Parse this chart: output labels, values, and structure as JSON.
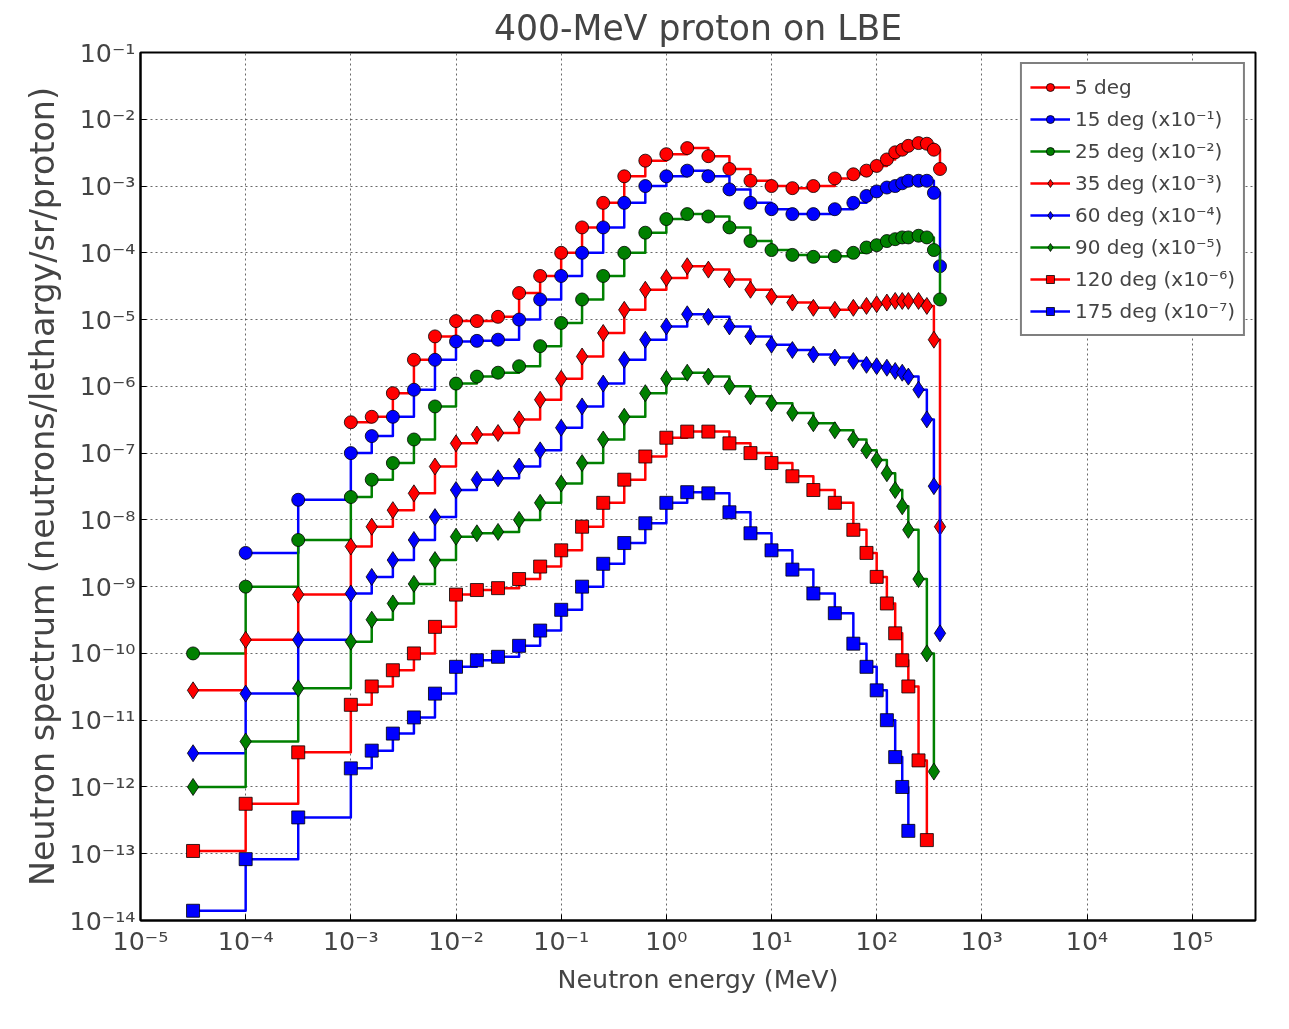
{
  "chart_data": {
    "type": "step",
    "title": "400-MeV proton on LBE",
    "xlabel": "Neutron energy (MeV)",
    "ylabel": "Neutron spectrum (neutrons/lethargy/sr/proton)",
    "log": "xy",
    "grid": true,
    "legend": "top right",
    "line_style": "solid",
    "xlim": [
      1e-05,
      400000
    ],
    "ylim": [
      1e-14,
      0.1
    ],
    "xticks": [
      {
        "value": 1e-05,
        "label": "10⁻⁵"
      },
      {
        "value": 0.0001,
        "label": "10⁻⁴"
      },
      {
        "value": 0.001,
        "label": "10⁻³"
      },
      {
        "value": 0.01,
        "label": "10⁻²"
      },
      {
        "value": 0.1,
        "label": "10⁻¹"
      },
      {
        "value": 1,
        "label": "10⁰"
      },
      {
        "value": 10,
        "label": "10¹"
      },
      {
        "value": 100,
        "label": "10²"
      },
      {
        "value": 1000,
        "label": "10³"
      },
      {
        "value": 10000,
        "label": "10⁴"
      },
      {
        "value": 100000,
        "label": "10⁵"
      }
    ],
    "yticks": [
      {
        "value": 1e-14,
        "label": "10⁻¹⁴"
      },
      {
        "value": 1e-13,
        "label": "10⁻¹³"
      },
      {
        "value": 1e-12,
        "label": "10⁻¹²"
      },
      {
        "value": 1e-11,
        "label": "10⁻¹¹"
      },
      {
        "value": 1e-10,
        "label": "10⁻¹⁰"
      },
      {
        "value": 1e-09,
        "label": "10⁻⁹"
      },
      {
        "value": 1e-08,
        "label": "10⁻⁸"
      },
      {
        "value": 1e-07,
        "label": "10⁻⁷"
      },
      {
        "value": 1e-06,
        "label": "10⁻⁶"
      },
      {
        "value": 1e-05,
        "label": "10⁻⁵"
      },
      {
        "value": 0.0001,
        "label": "10⁻⁴"
      },
      {
        "value": 0.001,
        "label": "10⁻³"
      },
      {
        "value": 0.01,
        "label": "10⁻²"
      },
      {
        "value": 0.1,
        "label": "10⁻¹"
      }
    ],
    "x": [
      3.16e-05,
      0.0001,
      0.000316,
      0.001,
      0.00158,
      0.00251,
      0.00398,
      0.00631,
      0.01,
      0.0158,
      0.0251,
      0.0398,
      0.0631,
      0.1,
      0.158,
      0.251,
      0.398,
      0.631,
      1,
      1.58,
      2.51,
      3.98,
      6.31,
      10,
      15.8,
      25,
      40,
      60,
      80,
      100,
      125,
      150,
      175,
      200,
      250,
      300,
      350,
      400
    ],
    "series": [
      {
        "name": "5 deg",
        "color": "#ff0000",
        "marker": "circle",
        "values": [
          null,
          null,
          null,
          2.9e-07,
          3.5e-07,
          7.9e-07,
          2.5e-06,
          5.6e-06,
          9.5e-06,
          9.5e-06,
          1.1e-05,
          2.5e-05,
          4.5e-05,
          0.0001,
          0.00024,
          0.00056,
          0.0014,
          0.0024,
          0.003,
          0.0037,
          0.0028,
          0.0018,
          0.0012,
          0.001,
          0.00093,
          0.001,
          0.0013,
          0.0015,
          0.0017,
          0.002,
          0.0025,
          0.0032,
          0.0035,
          0.004,
          0.0044,
          0.0043,
          0.0035,
          0.0018
        ]
      },
      {
        "name": "15 deg (x10⁻¹)",
        "color": "#0000ff",
        "marker": "circle",
        "values": [
          null,
          3.2e-09,
          2e-08,
          1e-07,
          1.8e-07,
          3.5e-07,
          8.9e-07,
          2.5e-06,
          4.7e-06,
          4.8e-06,
          5e-06,
          1e-05,
          2e-05,
          4.5e-05,
          0.0001,
          0.00024,
          0.00056,
          0.001,
          0.0014,
          0.0017,
          0.0014,
          0.00089,
          0.00056,
          0.00045,
          0.00038,
          0.00038,
          0.00045,
          0.00056,
          0.00071,
          0.00083,
          0.00095,
          0.001,
          0.0011,
          0.0012,
          0.0012,
          0.0012,
          0.00079,
          6.3e-05
        ]
      },
      {
        "name": "25 deg (x10⁻²)",
        "color": "#008000",
        "marker": "circle",
        "values": [
          1e-10,
          1e-09,
          5e-09,
          2.2e-08,
          4e-08,
          7.1e-08,
          1.6e-07,
          5e-07,
          1.1e-06,
          1.4e-06,
          1.6e-06,
          2e-06,
          4e-06,
          8.9e-06,
          2e-05,
          4.5e-05,
          0.0001,
          0.0002,
          0.00032,
          0.00038,
          0.00035,
          0.00024,
          0.00015,
          0.00011,
          9.3e-05,
          8.7e-05,
          8.9e-05,
          0.0001,
          0.00012,
          0.00013,
          0.00015,
          0.00016,
          0.00017,
          0.00017,
          0.00018,
          0.00017,
          0.00011,
          2e-05
        ]
      },
      {
        "name": "35 deg (x10⁻³)",
        "color": "#ff0000",
        "marker": "diamond",
        "values": [
          2.8e-11,
          1.6e-10,
          7.6e-10,
          4e-09,
          7.9e-09,
          1.4e-08,
          2.5e-08,
          6.3e-08,
          1.4e-07,
          1.9e-07,
          2e-07,
          3.2e-07,
          6.3e-07,
          1.3e-06,
          2.8e-06,
          6.3e-06,
          1.4e-05,
          2.8e-05,
          4.2e-05,
          6.3e-05,
          5.6e-05,
          4e-05,
          2.8e-05,
          2.2e-05,
          1.8e-05,
          1.5e-05,
          1.4e-05,
          1.5e-05,
          1.6e-05,
          1.7e-05,
          1.8e-05,
          1.9e-05,
          1.9e-05,
          1.9e-05,
          1.9e-05,
          1.6e-05,
          5e-06,
          7.9e-09
        ]
      },
      {
        "name": "60 deg (x10⁻⁴)",
        "color": "#0000ff",
        "marker": "diamond",
        "values": [
          3.2e-12,
          2.5e-11,
          1.6e-10,
          7.9e-10,
          1.4e-09,
          2.5e-09,
          5e-09,
          1.1e-08,
          2.8e-08,
          4e-08,
          4.2e-08,
          6.3e-08,
          1.1e-07,
          2.4e-07,
          5e-07,
          1.1e-06,
          2.5e-06,
          5e-06,
          7.9e-06,
          1.2e-05,
          1.1e-05,
          7.9e-06,
          5.6e-06,
          4.2e-06,
          3.5e-06,
          3e-06,
          2.7e-06,
          2.4e-06,
          2.1e-06,
          2e-06,
          1.9e-06,
          1.7e-06,
          1.6e-06,
          1.4e-06,
          8.9e-07,
          3.2e-07,
          3.2e-08,
          2e-10
        ]
      },
      {
        "name": "90 deg (x10⁻⁵)",
        "color": "#008000",
        "marker": "diamond",
        "values": [
          1e-12,
          4.8e-12,
          3e-11,
          1.5e-10,
          3.2e-10,
          5.6e-10,
          1.1e-09,
          2.5e-09,
          5.6e-09,
          6.3e-09,
          6.6e-09,
          1e-08,
          1.8e-08,
          3.5e-08,
          7.1e-08,
          1.6e-07,
          3.5e-07,
          7.9e-07,
          1.3e-06,
          1.6e-06,
          1.4e-06,
          1e-06,
          7.1e-07,
          5.6e-07,
          4e-07,
          2.8e-07,
          2.2e-07,
          1.6e-07,
          1.1e-07,
          7.9e-08,
          5e-08,
          2.8e-08,
          1.6e-08,
          7.1e-09,
          1.3e-09,
          1e-10,
          1.7e-12,
          null
        ]
      },
      {
        "name": "120 deg (x10⁻⁶)",
        "color": "#ff0000",
        "marker": "square",
        "values": [
          1.1e-13,
          5.6e-13,
          3.3e-12,
          1.7e-11,
          3.2e-11,
          5.6e-11,
          1e-10,
          2.5e-10,
          7.6e-10,
          8.9e-10,
          9.5e-10,
          1.3e-09,
          2e-09,
          3.5e-09,
          7.9e-09,
          1.8e-08,
          4e-08,
          8.9e-08,
          1.7e-07,
          2.1e-07,
          2.1e-07,
          1.4e-07,
          1e-07,
          7.1e-08,
          4.5e-08,
          2.8e-08,
          1.8e-08,
          7.1e-09,
          3.2e-09,
          1.4e-09,
          5.6e-10,
          2e-10,
          7.9e-11,
          3.2e-11,
          2.5e-12,
          1.6e-13,
          null,
          null
        ]
      },
      {
        "name": "175 deg (x10⁻⁷)",
        "color": "#0000ff",
        "marker": "square",
        "values": [
          1.4e-14,
          8.3e-14,
          3.5e-13,
          1.9e-12,
          3.5e-12,
          6.3e-12,
          1.1e-11,
          2.5e-11,
          6.3e-11,
          7.9e-11,
          8.9e-11,
          1.3e-10,
          2.2e-10,
          4.5e-10,
          1e-09,
          2.2e-09,
          4.5e-09,
          8.9e-09,
          1.8e-08,
          2.6e-08,
          2.5e-08,
          1.3e-08,
          6.3e-09,
          3.5e-09,
          1.8e-09,
          7.9e-10,
          4e-10,
          1.4e-10,
          6.3e-11,
          2.8e-11,
          1e-11,
          2.8e-12,
          1e-12,
          2.2e-13,
          null,
          null,
          null,
          null
        ]
      }
    ]
  }
}
